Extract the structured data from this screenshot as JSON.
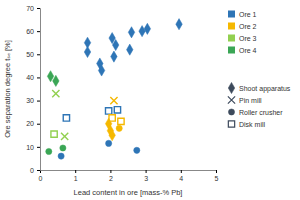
{
  "chart_data": {
    "type": "scatter",
    "x_label": "Lead content in ore [mass-% Pb]",
    "y_label": "Ore separation degree tₛₑ [%]",
    "xlim": [
      0,
      5
    ],
    "xticks": [
      0,
      1,
      2,
      3,
      4,
      5
    ],
    "ylim": [
      0,
      70
    ],
    "yticks": [
      0,
      10,
      20,
      30,
      40,
      50,
      60,
      70
    ],
    "grid": false,
    "legend": "right",
    "series": [
      {
        "name": "Ore 1",
        "color": "#2e75b6",
        "groups": [
          {
            "marker": "diamond",
            "x": [
              1.35,
              1.35,
              1.7,
              1.75,
              2.05,
              2.15,
              2.1,
              2.55,
              2.6,
              2.9,
              3.05,
              3.95
            ],
            "values": [
              55,
              51,
              46,
              43,
              57,
              54,
              49,
              52,
              59.5,
              60,
              61,
              63
            ]
          },
          {
            "marker": "circle",
            "x": [
              0.6,
              1.95,
              2.75
            ],
            "values": [
              6,
              11.5,
              8.5
            ]
          },
          {
            "marker": "square-open",
            "x": [
              0.75,
              1.95,
              2.2
            ],
            "values": [
              22.5,
              25.5,
              26
            ]
          }
        ]
      },
      {
        "name": "Ore 2",
        "color": "#f5b800",
        "groups": [
          {
            "marker": "diamond",
            "x": [
              1.95,
              2.0,
              2.05
            ],
            "values": [
              20,
              17,
              15
            ]
          },
          {
            "marker": "x",
            "x": [
              2.1
            ],
            "values": [
              30
            ]
          },
          {
            "marker": "circle",
            "x": [
              2.25
            ],
            "values": [
              18
            ]
          },
          {
            "marker": "square-open",
            "x": [
              2.05,
              2.3
            ],
            "values": [
              22.5,
              21
            ]
          }
        ]
      },
      {
        "name": "Ore 3",
        "color": "#92d050",
        "groups": [
          {
            "marker": "x",
            "x": [
              0.45,
              0.7
            ],
            "values": [
              33,
              14.5
            ]
          },
          {
            "marker": "square-open",
            "x": [
              0.4
            ],
            "values": [
              15.5
            ]
          }
        ]
      },
      {
        "name": "Ore 4",
        "color": "#3aa655",
        "groups": [
          {
            "marker": "diamond",
            "x": [
              0.3,
              0.45
            ],
            "values": [
              40.5,
              38.5
            ]
          },
          {
            "marker": "circle",
            "x": [
              0.25,
              0.65
            ],
            "values": [
              8,
              9.5
            ]
          }
        ]
      }
    ],
    "marker_legend": [
      {
        "name": "Shoot apparatus",
        "marker": "diamond"
      },
      {
        "name": "Pin mill",
        "marker": "x"
      },
      {
        "name": "Roller crusher",
        "marker": "circle"
      },
      {
        "name": "Disk mill",
        "marker": "square-open"
      }
    ]
  }
}
